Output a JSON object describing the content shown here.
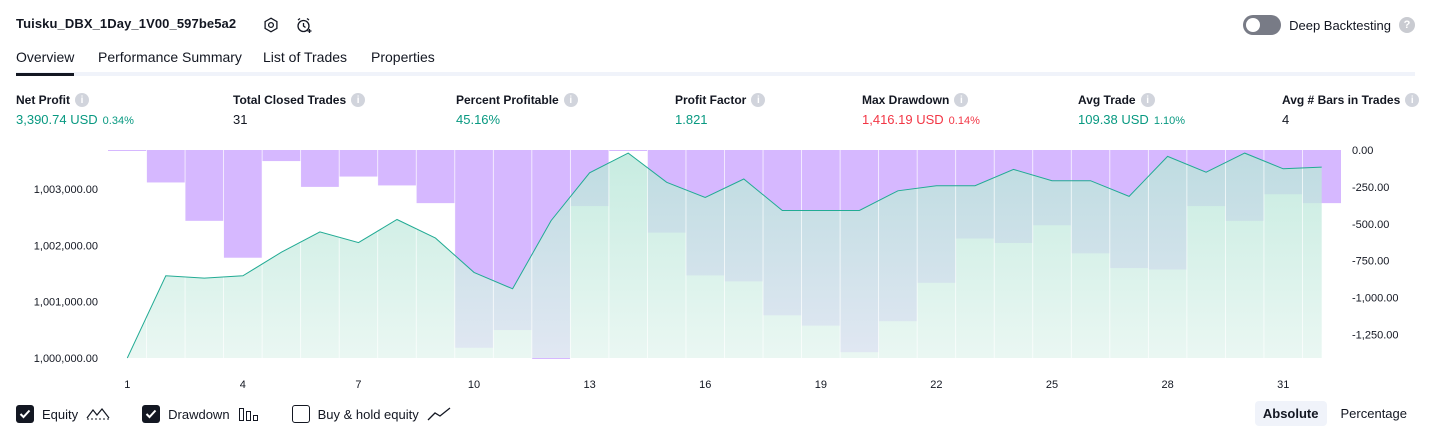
{
  "header": {
    "strategy_name": "Tuisku_DBX_1Day_1V00_597be5a2",
    "deep_backtesting_label": "Deep Backtesting",
    "help_glyph": "?"
  },
  "tabs": [
    {
      "label": "Overview",
      "active": true
    },
    {
      "label": "Performance Summary",
      "active": false
    },
    {
      "label": "List of Trades",
      "active": false
    },
    {
      "label": "Properties",
      "active": false
    }
  ],
  "metrics": [
    {
      "label": "Net Profit",
      "value": "3,390.74 USD",
      "pct": "0.34%",
      "tone": "pos"
    },
    {
      "label": "Total Closed Trades",
      "value": "31",
      "pct": "",
      "tone": "neu"
    },
    {
      "label": "Percent Profitable",
      "value": "45.16%",
      "pct": "",
      "tone": "pos"
    },
    {
      "label": "Profit Factor",
      "value": "1.821",
      "pct": "",
      "tone": "pos"
    },
    {
      "label": "Max Drawdown",
      "value": "1,416.19 USD",
      "pct": "0.14%",
      "tone": "neg"
    },
    {
      "label": "Avg Trade",
      "value": "109.38 USD",
      "pct": "1.10%",
      "tone": "pos"
    },
    {
      "label": "Avg # Bars in Trades",
      "value": "4",
      "pct": "",
      "tone": "neu"
    }
  ],
  "info_glyph": "i",
  "legend": {
    "equity_label": "Equity",
    "drawdown_label": "Drawdown",
    "buyhold_label": "Buy & hold equity",
    "equity_checked": true,
    "drawdown_checked": true,
    "buyhold_checked": false
  },
  "scale": {
    "absolute_label": "Absolute",
    "percentage_label": "Percentage",
    "active": "Absolute"
  },
  "colors": {
    "equity_line": "#22ab94",
    "drawdown_fill": "#d6b8ff",
    "positive": "#089981",
    "negative": "#f23645"
  },
  "chart_data": {
    "type": "area",
    "x_ticks": [
      "1",
      "4",
      "7",
      "10",
      "13",
      "16",
      "19",
      "22",
      "25",
      "28",
      "31"
    ],
    "left_axis": {
      "label": "",
      "ticks": [
        "1,000,000.00",
        "1,001,000.00",
        "1,002,000.00",
        "1,003,000.00"
      ],
      "range": [
        1000000,
        1003700
      ]
    },
    "right_axis": {
      "label": "",
      "ticks": [
        "0.00",
        "-250.00",
        "-500.00",
        "-750.00",
        "-1,000.00",
        "-1,250.00"
      ],
      "range": [
        -1416.19,
        0
      ]
    },
    "series": [
      {
        "name": "Equity",
        "type": "line",
        "axis": "left",
        "x": [
          1,
          2,
          3,
          4,
          5,
          6,
          7,
          8,
          9,
          10,
          11,
          12,
          13,
          14,
          15,
          16,
          17,
          18,
          19,
          20,
          21,
          22,
          23,
          24,
          25,
          26,
          27,
          28,
          29,
          30,
          31,
          32
        ],
        "values": [
          1000000,
          1001460,
          1001420,
          1001460,
          1001880,
          1002240,
          1002050,
          1002460,
          1002130,
          1001520,
          1001230,
          1002440,
          1003290,
          1003640,
          1003120,
          1002850,
          1003180,
          1002620,
          1002620,
          1002620,
          1002970,
          1003060,
          1003060,
          1003350,
          1003150,
          1003150,
          1002870,
          1003580,
          1003300,
          1003640,
          1003360,
          1003390
        ]
      },
      {
        "name": "Drawdown",
        "type": "bar",
        "axis": "right",
        "x": [
          1,
          2,
          3,
          4,
          5,
          6,
          7,
          8,
          9,
          10,
          11,
          12,
          13,
          14,
          15,
          16,
          17,
          18,
          19,
          20,
          21,
          22,
          23,
          24,
          25,
          26,
          27,
          28,
          29,
          30,
          31,
          32
        ],
        "values": [
          -5,
          -220,
          -480,
          -730,
          -75,
          -250,
          -180,
          -240,
          -360,
          -1340,
          -1220,
          -1416.19,
          -380,
          0,
          -560,
          -850,
          -890,
          -1120,
          -1190,
          -1370,
          -1160,
          -900,
          -600,
          -630,
          -510,
          -700,
          -800,
          -810,
          -380,
          -480,
          -300,
          -360
        ]
      }
    ]
  }
}
